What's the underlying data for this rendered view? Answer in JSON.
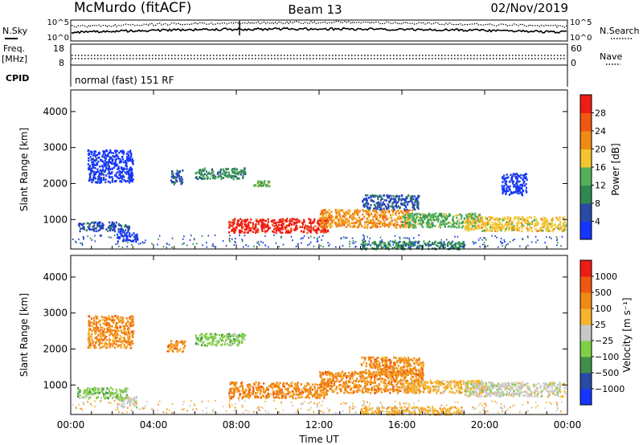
{
  "header": {
    "station": "McMurdo (fitACF)",
    "beam": "Beam 13",
    "date": "02/Nov/2019"
  },
  "top_panel": {
    "left_label": "N.Sky",
    "right_label": "N.Search",
    "left_ticks": [
      "10^5",
      "10^0"
    ],
    "right_ticks": [
      "10^5",
      "10^0"
    ]
  },
  "freq_panel": {
    "left_label_1": "Freq.",
    "left_label_2": "[MHz]",
    "right_label": "Nave",
    "left_ticks": [
      "18",
      "8"
    ],
    "right_ticks": [
      "60",
      "0"
    ]
  },
  "cpid": {
    "label": "CPID",
    "value": "normal (fast) 151 RF"
  },
  "chart_data": [
    {
      "type": "heatmap",
      "name": "power",
      "xlabel": "Time UT",
      "ylabel": "Slant Range [km]",
      "x_ticks": [
        "00:00",
        "04:00",
        "08:00",
        "12:00",
        "16:00",
        "20:00",
        "00:00"
      ],
      "x_range_hours": [
        0,
        24
      ],
      "y_ticks": [
        1000,
        2000,
        3000,
        4000
      ],
      "ylim": [
        180,
        4600
      ],
      "colorbar": {
        "label": "Power [dB]",
        "ticks": [
          "4",
          "8",
          "12",
          "16",
          "20",
          "24",
          "28"
        ],
        "colors": [
          "#1436ff",
          "#2a4aa8",
          "#2e8a50",
          "#53b05a",
          "#f4c531",
          "#f08a14",
          "#f0580f",
          "#ee1d13"
        ]
      },
      "blobs": [
        {
          "t0": 0.3,
          "t1": 2.8,
          "r0": 700,
          "r1": 950,
          "level": 1
        },
        {
          "t0": 2.2,
          "t1": 3.2,
          "r0": 400,
          "r1": 700,
          "level": 0
        },
        {
          "t0": 0.8,
          "t1": 3.0,
          "r0": 2050,
          "r1": 2950,
          "level": 0
        },
        {
          "t0": 4.8,
          "t1": 5.4,
          "r0": 2000,
          "r1": 2400,
          "level": 1
        },
        {
          "t0": 6.0,
          "t1": 8.4,
          "r0": 2150,
          "r1": 2450,
          "level": 2
        },
        {
          "t0": 8.8,
          "t1": 9.6,
          "r0": 1950,
          "r1": 2100,
          "level": 3
        },
        {
          "t0": 7.6,
          "t1": 12.4,
          "r0": 650,
          "r1": 1050,
          "level": 7
        },
        {
          "t0": 12.0,
          "t1": 16.5,
          "r0": 800,
          "r1": 1300,
          "level": 5
        },
        {
          "t0": 14.0,
          "t1": 16.8,
          "r0": 1300,
          "r1": 1700,
          "level": 1
        },
        {
          "t0": 16.0,
          "t1": 19.8,
          "r0": 800,
          "r1": 1200,
          "level": 3
        },
        {
          "t0": 19.0,
          "t1": 23.9,
          "r0": 700,
          "r1": 1100,
          "level": 4
        },
        {
          "t0": 14.0,
          "t1": 19.0,
          "r0": 200,
          "r1": 420,
          "level": 2
        },
        {
          "t0": 20.8,
          "t1": 22.0,
          "r0": 1700,
          "r1": 2300,
          "level": 0
        }
      ]
    },
    {
      "type": "heatmap",
      "name": "velocity",
      "xlabel": "Time UT",
      "ylabel": "Slant Range [km]",
      "x_ticks": [
        "00:00",
        "04:00",
        "08:00",
        "12:00",
        "16:00",
        "20:00",
        "00:00"
      ],
      "x_range_hours": [
        0,
        24
      ],
      "y_ticks": [
        1000,
        2000,
        3000,
        4000
      ],
      "ylim": [
        180,
        4600
      ],
      "colorbar": {
        "label": "Velocity [m s⁻¹]",
        "ticks": [
          "1000",
          "500",
          "100",
          "25",
          "−25",
          "−100",
          "−500",
          "−1000"
        ],
        "colors": [
          "#1436ff",
          "#2a4aa8",
          "#3f8f4a",
          "#7fd045",
          "#c8c8c8",
          "#f7b52d",
          "#f08a14",
          "#f0580f",
          "#ee1d13"
        ]
      },
      "blobs": [
        {
          "t0": 0.3,
          "t1": 2.8,
          "r0": 650,
          "r1": 950,
          "level": 3
        },
        {
          "t0": 2.2,
          "t1": 3.2,
          "r0": 400,
          "r1": 700,
          "level": 4
        },
        {
          "t0": 4.6,
          "t1": 5.5,
          "r0": 1950,
          "r1": 2250,
          "level": 6
        },
        {
          "t0": 6.0,
          "t1": 8.4,
          "r0": 2100,
          "r1": 2450,
          "level": 3
        },
        {
          "t0": 7.6,
          "t1": 12.4,
          "r0": 650,
          "r1": 1100,
          "level": 6
        },
        {
          "t0": 12.0,
          "t1": 17.0,
          "r0": 800,
          "r1": 1400,
          "level": 6
        },
        {
          "t0": 14.0,
          "t1": 17.0,
          "r0": 1300,
          "r1": 1800,
          "level": 6
        },
        {
          "t0": 16.0,
          "t1": 20.0,
          "r0": 800,
          "r1": 1150,
          "level": 5
        },
        {
          "t0": 19.0,
          "t1": 23.9,
          "r0": 700,
          "r1": 1100,
          "level": 4
        },
        {
          "t0": 14.0,
          "t1": 19.0,
          "r0": 200,
          "r1": 420,
          "level": 5
        },
        {
          "t0": 0.8,
          "t1": 3.0,
          "r0": 2050,
          "r1": 2950,
          "level": 6
        }
      ]
    }
  ]
}
